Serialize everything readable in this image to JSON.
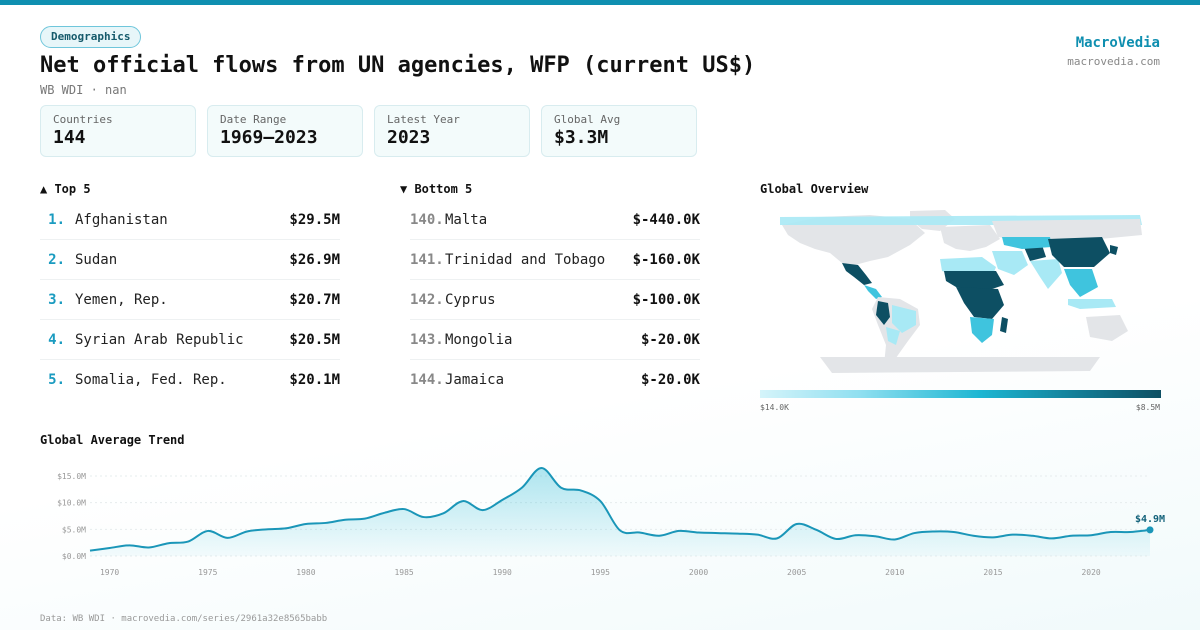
{
  "badge": "Demographics",
  "title": "Net official flows from UN agencies, WFP (current US$)",
  "subtitle": "WB WDI · nan",
  "brand": {
    "name": "MacroVedia",
    "url": "macrovedia.com"
  },
  "stats": [
    {
      "label": "Countries",
      "value": "144"
    },
    {
      "label": "Date Range",
      "value": "1969–2023"
    },
    {
      "label": "Latest Year",
      "value": "2023"
    },
    {
      "label": "Global Avg",
      "value": "$3.3M"
    }
  ],
  "top5": {
    "heading": "▲ Top 5",
    "items": [
      {
        "rank": "1.",
        "name": "Afghanistan",
        "value": "$29.5M"
      },
      {
        "rank": "2.",
        "name": "Sudan",
        "value": "$26.9M"
      },
      {
        "rank": "3.",
        "name": "Yemen, Rep.",
        "value": "$20.7M"
      },
      {
        "rank": "4.",
        "name": "Syrian Arab Republic",
        "value": "$20.5M"
      },
      {
        "rank": "5.",
        "name": "Somalia, Fed. Rep.",
        "value": "$20.1M"
      }
    ]
  },
  "bottom5": {
    "heading": "▼ Bottom 5",
    "items": [
      {
        "rank": "140.",
        "name": "Malta",
        "value": "$-440.0K"
      },
      {
        "rank": "141.",
        "name": "Trinidad and Tobago",
        "value": "$-160.0K"
      },
      {
        "rank": "142.",
        "name": "Cyprus",
        "value": "$-100.0K"
      },
      {
        "rank": "143.",
        "name": "Mongolia",
        "value": "$-20.0K"
      },
      {
        "rank": "144.",
        "name": "Jamaica",
        "value": "$-20.0K"
      }
    ]
  },
  "map": {
    "heading": "Global Overview",
    "legend_min": "$14.0K",
    "legend_max": "$8.5M",
    "colors": {
      "none": "#e3e5e8",
      "low": "#a8e9f5",
      "mid": "#3fc4de",
      "high": "#0d4f63"
    }
  },
  "chart_data": {
    "type": "area",
    "title": "Global Average Trend",
    "x_tick_labels": [
      "1970",
      "1975",
      "1980",
      "1985",
      "1990",
      "1995",
      "2000",
      "2005",
      "2010",
      "2015",
      "2020"
    ],
    "y_tick_labels": [
      "$0.0M",
      "$5.0M",
      "$10.0M",
      "$15.0M"
    ],
    "ylim": [
      0,
      16.5
    ],
    "xlim": [
      1969,
      2023
    ],
    "x": [
      1969,
      1970,
      1971,
      1972,
      1973,
      1974,
      1975,
      1976,
      1977,
      1978,
      1979,
      1980,
      1981,
      1982,
      1983,
      1984,
      1985,
      1986,
      1987,
      1988,
      1989,
      1990,
      1991,
      1992,
      1993,
      1994,
      1995,
      1996,
      1997,
      1998,
      1999,
      2000,
      2001,
      2002,
      2003,
      2004,
      2005,
      2006,
      2007,
      2008,
      2009,
      2010,
      2011,
      2012,
      2013,
      2014,
      2015,
      2016,
      2017,
      2018,
      2019,
      2020,
      2021,
      2022,
      2023
    ],
    "values": [
      1.0,
      1.5,
      2.0,
      1.6,
      2.4,
      2.7,
      4.7,
      3.4,
      4.6,
      5.0,
      5.2,
      6.0,
      6.2,
      6.8,
      7.0,
      8.1,
      8.8,
      7.3,
      8.0,
      10.3,
      8.6,
      10.5,
      12.8,
      16.5,
      12.8,
      12.3,
      10.3,
      4.8,
      4.4,
      3.8,
      4.7,
      4.4,
      4.3,
      4.2,
      4.0,
      3.3,
      6.0,
      4.9,
      3.2,
      3.9,
      3.7,
      3.1,
      4.3,
      4.6,
      4.5,
      3.8,
      3.5,
      4.0,
      3.8,
      3.3,
      3.8,
      3.9,
      4.5,
      4.5,
      4.9
    ],
    "last_value_label": "$4.9M",
    "grid": true
  },
  "footer": "Data: WB WDI · macrovedia.com/series/2961a32e8565babb"
}
